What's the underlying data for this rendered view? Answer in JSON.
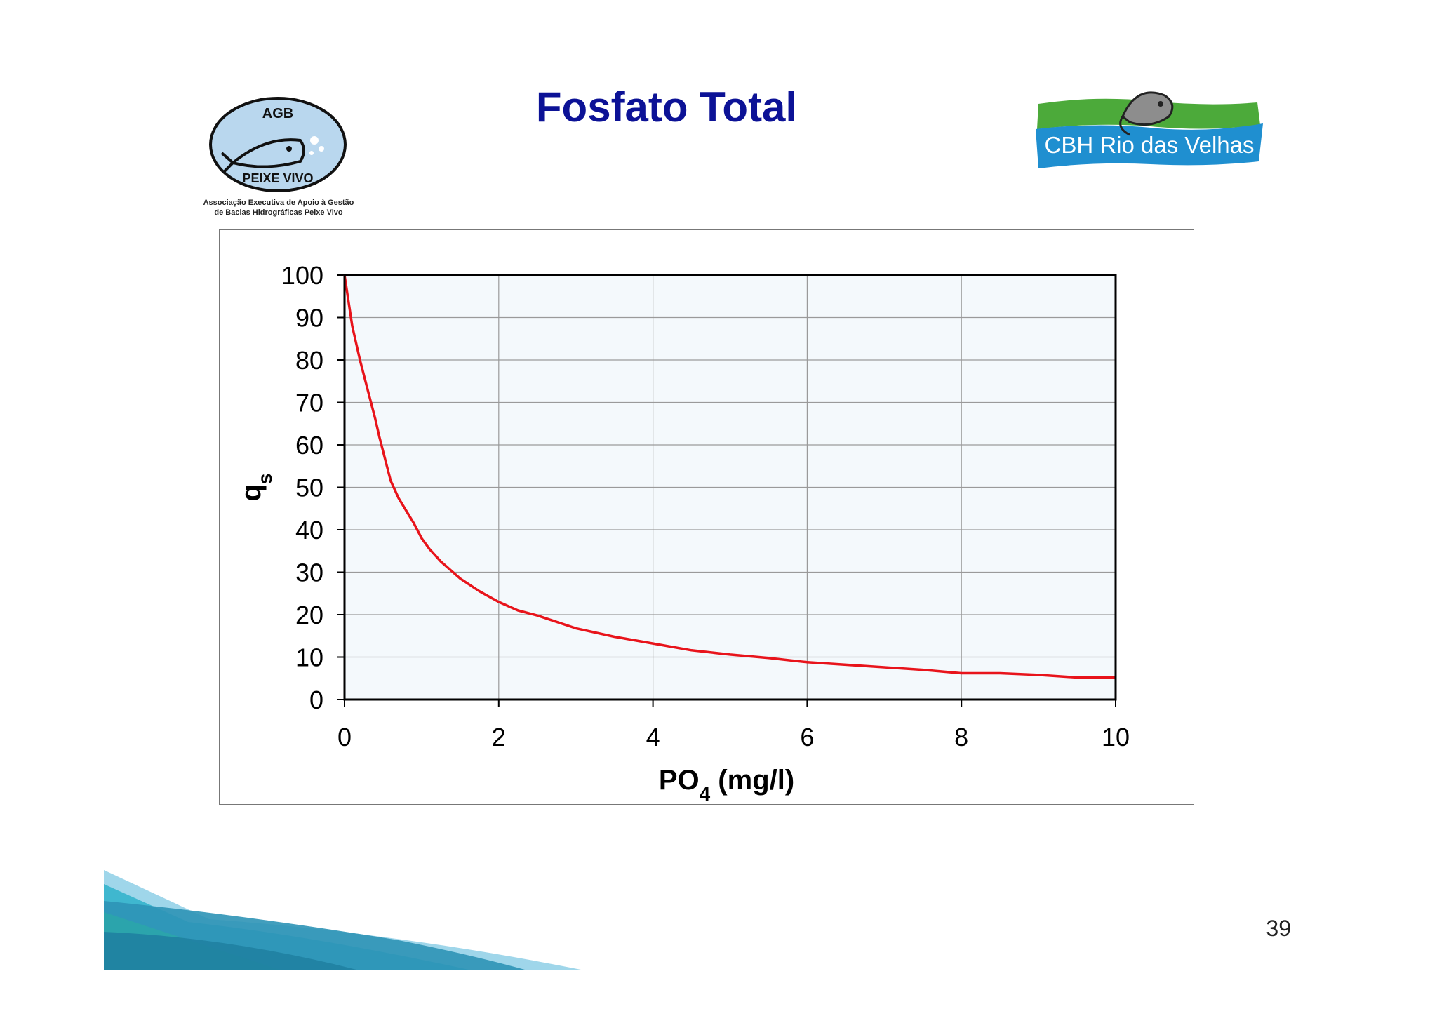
{
  "slide": {
    "title": "Fosfato Total",
    "page_number": "39"
  },
  "logos": {
    "left": {
      "top_text": "AGB",
      "bottom_text": "PEIXE VIVO",
      "caption_line1": "Associação Executiva de Apoio à Gestão",
      "caption_line2": "de Bacias Hidrográficas Peixe Vivo"
    },
    "right": {
      "text": "CBH Rio das Velhas"
    }
  },
  "colors": {
    "title": "#0c1296",
    "curve": "#e8141b",
    "plot_bg": "#f4f9fc",
    "grid": "#9a9a9a",
    "logo_green": "#4caa3a",
    "logo_blue": "#1f8fd0"
  },
  "chart_data": {
    "type": "line",
    "xlabel_main": "PO",
    "xlabel_sub": "4",
    "xlabel_rest": " (mg/l)",
    "ylabel_main": "q",
    "ylabel_sub": "s",
    "xlim": [
      0,
      10
    ],
    "ylim": [
      0,
      100
    ],
    "xticks": [
      "0",
      "2",
      "4",
      "6",
      "8",
      "10"
    ],
    "yticks": [
      "0",
      "10",
      "20",
      "30",
      "40",
      "50",
      "60",
      "70",
      "80",
      "90",
      "100"
    ],
    "grid": true,
    "legend": "none",
    "series": [
      {
        "x": [
          0,
          0.1,
          0.2,
          0.3,
          0.4,
          0.45,
          0.55,
          0.6,
          0.7,
          0.8,
          0.9,
          1.0,
          1.1,
          1.25,
          1.5,
          1.75,
          2.0,
          2.25,
          2.5,
          3.0,
          3.5,
          4.0,
          4.5,
          5.0,
          5.5,
          6.0,
          6.5,
          7.0,
          7.5,
          8.0,
          8.5,
          9.0,
          9.5,
          10.0
        ],
        "y": [
          100,
          88,
          80,
          73,
          66,
          62,
          55,
          51.5,
          47.5,
          44.5,
          41.5,
          38,
          35.5,
          32.5,
          28.5,
          25.5,
          23,
          21,
          19.8,
          16.8,
          14.8,
          13.2,
          11.6,
          10.6,
          9.8,
          8.8,
          8.2,
          7.6,
          7.0,
          6.2,
          6.2,
          5.8,
          5.2,
          5.2
        ]
      }
    ]
  }
}
